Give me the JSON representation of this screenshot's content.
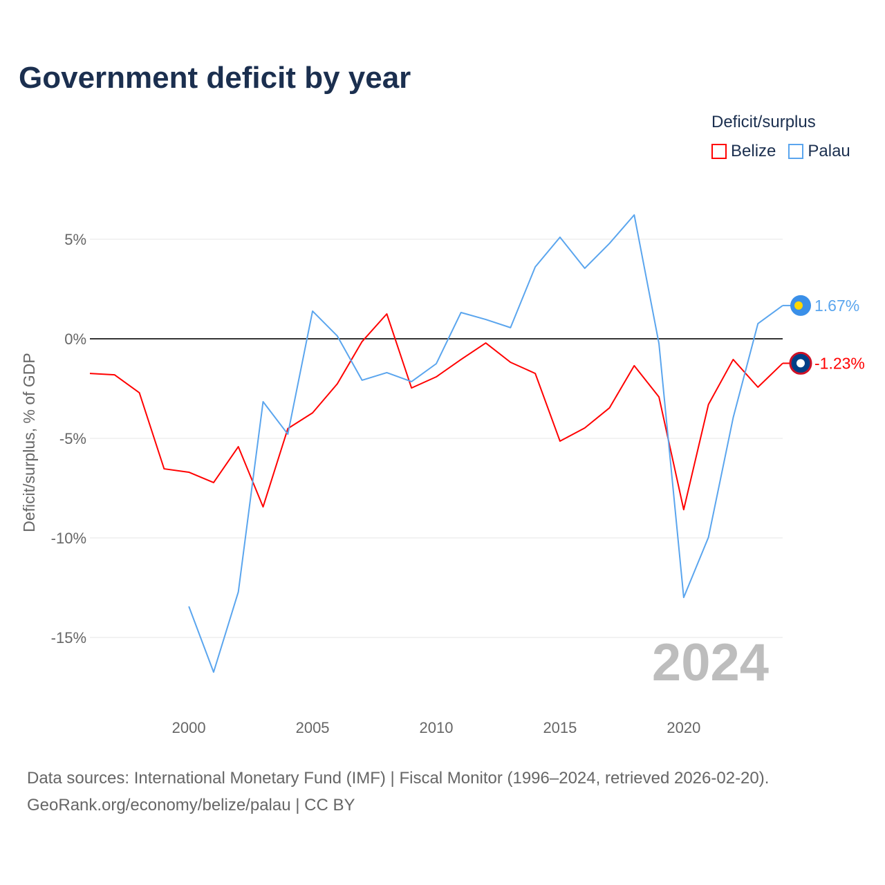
{
  "chart_data": {
    "type": "line",
    "title": "Government deficit by year",
    "ylabel": "Deficit/surplus, % of GDP",
    "xlabel": "",
    "xlim": [
      1996,
      2024
    ],
    "ylim": [
      -17.5,
      7.5
    ],
    "x_ticks": [
      2000,
      2005,
      2010,
      2015,
      2020
    ],
    "y_ticks": [
      5,
      0,
      -5,
      -10,
      -15
    ],
    "y_tick_labels": [
      "5%",
      "0%",
      "-5%",
      "-10%",
      "-15%"
    ],
    "legend_title": "Deficit/surplus",
    "legend_position": "top-right",
    "year_watermark": "2024",
    "series": [
      {
        "name": "Belize",
        "color": "#ff0000",
        "end_label": "-1.23%",
        "x": [
          1996,
          1997,
          1998,
          1999,
          2000,
          2001,
          2002,
          2003,
          2004,
          2005,
          2006,
          2007,
          2008,
          2009,
          2010,
          2011,
          2012,
          2013,
          2014,
          2015,
          2016,
          2017,
          2018,
          2019,
          2020,
          2021,
          2022,
          2023,
          2024
        ],
        "values": [
          -1.74,
          -1.81,
          -2.71,
          -6.53,
          -6.7,
          -7.22,
          -5.42,
          -8.44,
          -4.51,
          -3.72,
          -2.26,
          -0.14,
          1.25,
          -2.47,
          -1.91,
          -1.04,
          -0.21,
          -1.18,
          -1.74,
          -5.14,
          -4.48,
          -3.47,
          -1.35,
          -2.92,
          -8.58,
          -3.3,
          -1.04,
          -2.43,
          -1.23
        ]
      },
      {
        "name": "Palau",
        "color": "#5aa5ee",
        "end_label": "1.67%",
        "x": [
          2000,
          2001,
          2002,
          2003,
          2004,
          2005,
          2006,
          2007,
          2008,
          2009,
          2010,
          2011,
          2012,
          2013,
          2014,
          2015,
          2016,
          2017,
          2018,
          2019,
          2020,
          2021,
          2022,
          2023,
          2024
        ],
        "values": [
          -13.44,
          -16.74,
          -12.71,
          -3.16,
          -4.79,
          1.39,
          0.14,
          -2.08,
          -1.7,
          -2.15,
          -1.25,
          1.32,
          0.97,
          0.56,
          3.61,
          5.1,
          3.54,
          4.79,
          6.22,
          -0.24,
          -12.99,
          -9.97,
          -3.96,
          0.76,
          1.67
        ]
      }
    ]
  },
  "footer": {
    "line1": "Data sources: International Monetary Fund (IMF) | Fiscal Monitor (1996–2024, retrieved 2026-02-20).",
    "line2": "GeoRank.org/economy/belize/palau | CC BY"
  }
}
